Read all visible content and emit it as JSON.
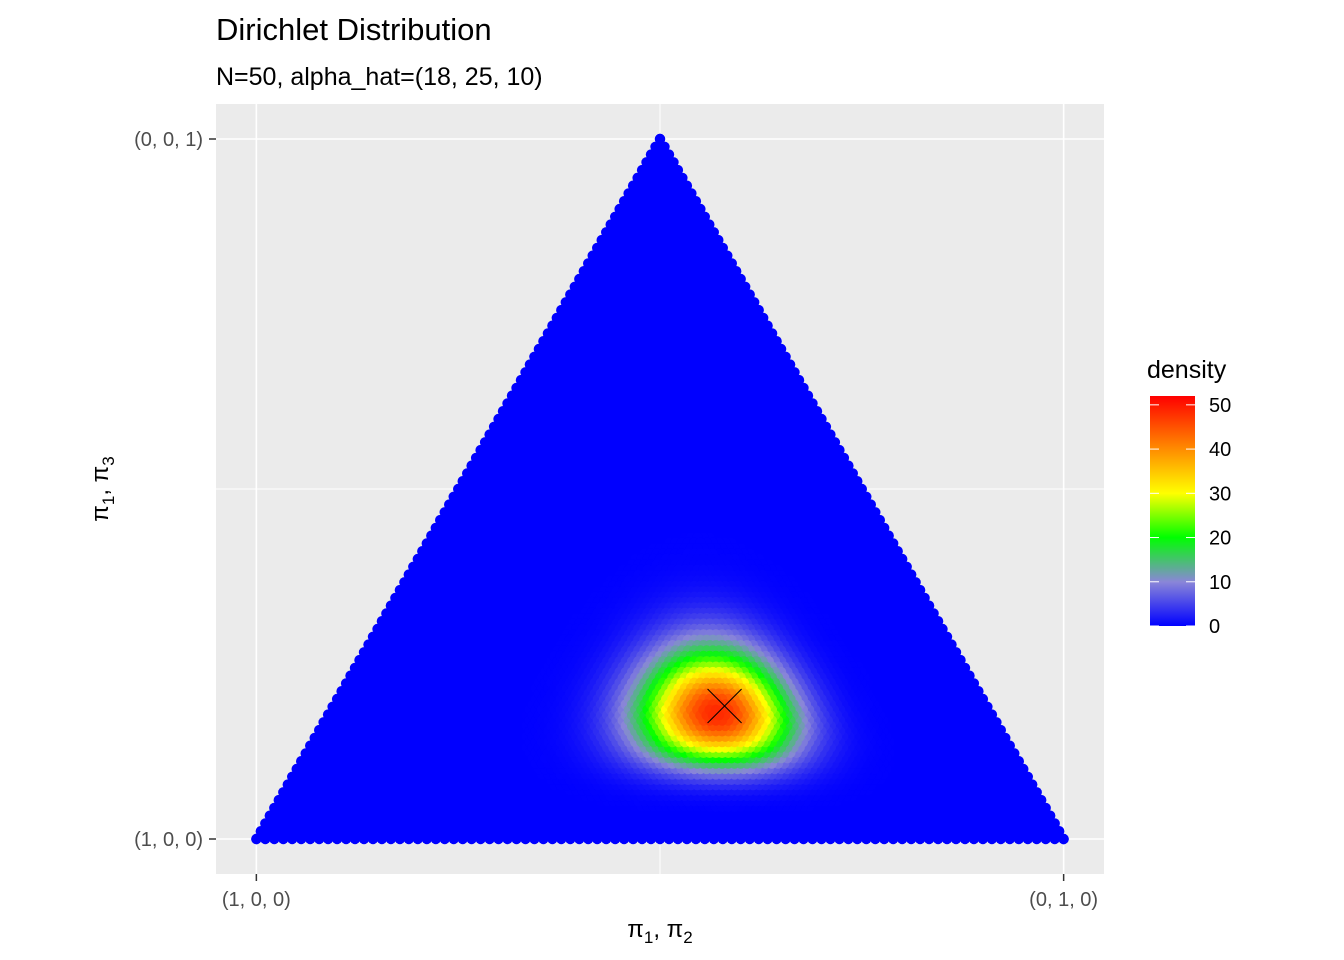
{
  "chart_data": {
    "type": "scatter",
    "title": "Dirichlet Distribution",
    "subtitle": "N=50, alpha_hat=(18, 25, 10)",
    "xlabel": "π1, π2",
    "ylabel": "π1, π3",
    "x_ticks": [
      {
        "value": 0,
        "label": "(1, 0, 0)"
      },
      {
        "value": 1,
        "label": "(0, 1, 0)"
      }
    ],
    "y_ticks": [
      {
        "value": 0,
        "label": "(1, 0, 0)"
      },
      {
        "value": 1,
        "label": "(0, 0, 1)"
      }
    ],
    "xlim": [
      -0.05,
      1.05
    ],
    "ylim": [
      -0.05,
      1.05
    ],
    "alpha": [
      18,
      25,
      10
    ],
    "mode_marker": {
      "x": 0.58,
      "y": 0.19,
      "shape": "cross"
    },
    "legend": {
      "title": "density",
      "position": "right",
      "ticks": [
        0,
        10,
        20,
        30,
        40,
        50
      ],
      "limits": [
        0,
        52
      ],
      "gradient": [
        {
          "value": 0,
          "color": "#0000ff"
        },
        {
          "value": 10,
          "color": "#8a86d8"
        },
        {
          "value": 20,
          "color": "#00ff00"
        },
        {
          "value": 30,
          "color": "#ffff00"
        },
        {
          "value": 40,
          "color": "#ff8c00"
        },
        {
          "value": 52,
          "color": "#ff0000"
        }
      ]
    },
    "panel_background": "#ebebeb",
    "grid": true,
    "grid_color": "#ffffff"
  }
}
